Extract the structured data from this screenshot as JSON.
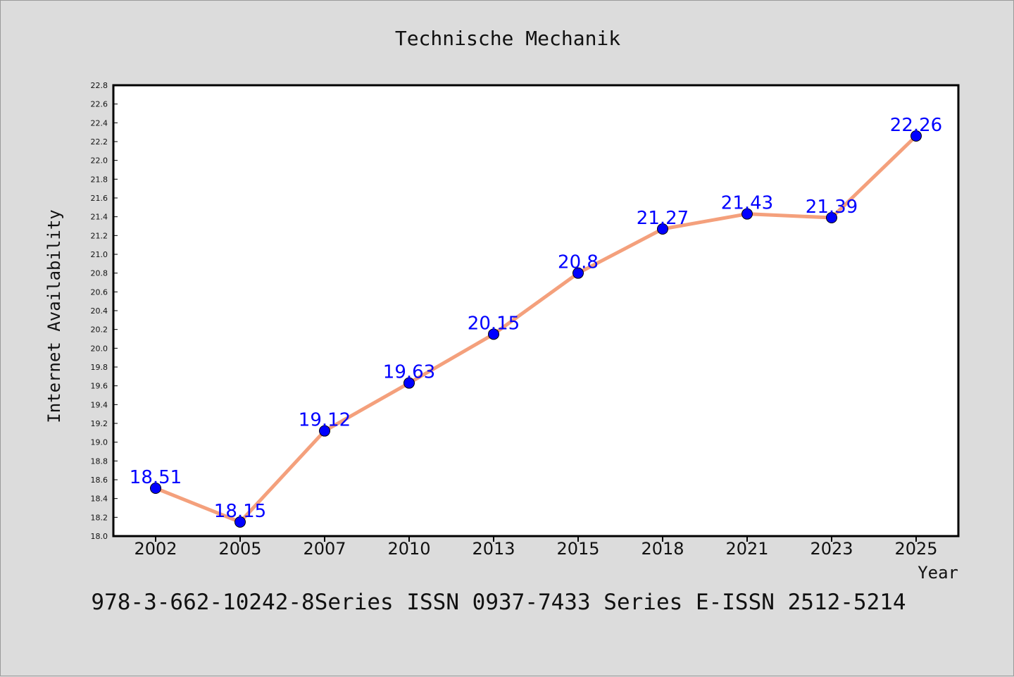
{
  "chart_data": {
    "type": "line",
    "title": "Technische Mechanik",
    "footer": "978-3-662-10242-8Series ISSN 0937-7433 Series E-ISSN 2512-5214",
    "xlabel": "Year",
    "ylabel": "Internet Availability",
    "categories": [
      "2002",
      "2005",
      "2007",
      "2010",
      "2013",
      "2015",
      "2018",
      "2021",
      "2023",
      "2025"
    ],
    "series": [
      {
        "values": [
          18.51,
          18.15,
          19.12,
          19.63,
          20.15,
          20.8,
          21.27,
          21.43,
          21.39,
          22.26
        ],
        "labels": [
          "18.51",
          "18.15",
          "19.12",
          "19.63",
          "20.15",
          "20.8",
          "21.27",
          "21.43",
          "21.39",
          "22.26"
        ]
      }
    ],
    "ylim": [
      18.0,
      22.8
    ],
    "yticks": [
      "18.0",
      "18.2",
      "18.4",
      "18.6",
      "18.8",
      "19.0",
      "19.2",
      "19.4",
      "19.6",
      "19.8",
      "20.0",
      "20.2",
      "20.4",
      "20.6",
      "20.8",
      "21.0",
      "21.2",
      "21.4",
      "21.6",
      "21.8",
      "22.0",
      "22.2",
      "22.4",
      "22.6",
      "22.8"
    ],
    "grid": false,
    "legend": "none",
    "colors": {
      "line": "#f4a07c",
      "marker": "#0000ff",
      "label": "#0000ff",
      "background": "#dcdcdc",
      "plot_background": "#ffffff"
    }
  }
}
